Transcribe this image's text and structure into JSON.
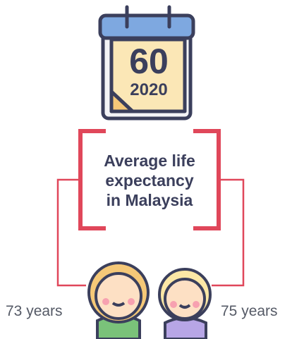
{
  "calendar": {
    "number": "60",
    "year": "2020"
  },
  "caption": {
    "lines": [
      "Average life",
      "expectancy",
      "in Malaysia"
    ]
  },
  "people": [
    {
      "label": "73 years"
    },
    {
      "label": "75 years"
    }
  ]
}
